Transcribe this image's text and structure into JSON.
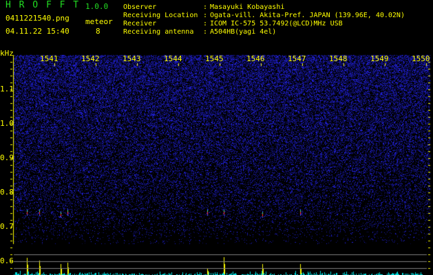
{
  "app": {
    "name": "H R O F F T",
    "version": "1.0.0"
  },
  "file": {
    "name": "0411221540.png",
    "datetime": "04.11.22 15:40"
  },
  "meteor": {
    "label": "meteor",
    "count": "8"
  },
  "station": [
    {
      "label": "Observer",
      "value": "Masayuki Kobayashi"
    },
    {
      "label": "Receiving Location",
      "value": "Ogata-vill. Akita-Pref. JAPAN (139.96E, 40.02N)"
    },
    {
      "label": "Receiver",
      "value": "ICOM IC-575 53.7492(@LCD)MHz USB"
    },
    {
      "label": "Receiving antenna",
      "value": "A504HB(yagi 4el)"
    }
  ],
  "chart_data": {
    "type": "heatmap",
    "ylabel": "kHz",
    "y_ticks": [
      "1.1",
      "1.0",
      "0.9",
      "0.8",
      "0.7",
      "0.6"
    ],
    "y_range": [
      0.55,
      1.2
    ],
    "x_ticks": [
      "1541",
      "1542",
      "1543",
      "1544",
      "1545",
      "1546",
      "1547",
      "1548",
      "1549",
      "1550"
    ],
    "x_range": [
      1540,
      1550.17
    ],
    "colors": {
      "noise": "#2020ff",
      "axis": "#ffff00",
      "peak": "#ffff00",
      "baseline": "#00e0e0",
      "grid": "#808080"
    },
    "meteor_echoes": [
      {
        "time": 1540.33,
        "freq": 0.74,
        "level": 0.95
      },
      {
        "time": 1540.63,
        "freq": 0.74,
        "level": 0.8
      },
      {
        "time": 1541.15,
        "freq": 0.735,
        "level": 0.6
      },
      {
        "time": 1541.32,
        "freq": 0.74,
        "level": 0.7
      },
      {
        "time": 1544.7,
        "freq": 0.74,
        "level": 0.4
      },
      {
        "time": 1545.1,
        "freq": 0.74,
        "level": 1.0
      },
      {
        "time": 1546.03,
        "freq": 0.735,
        "level": 0.6
      },
      {
        "time": 1546.95,
        "freq": 0.74,
        "level": 0.6
      }
    ]
  }
}
